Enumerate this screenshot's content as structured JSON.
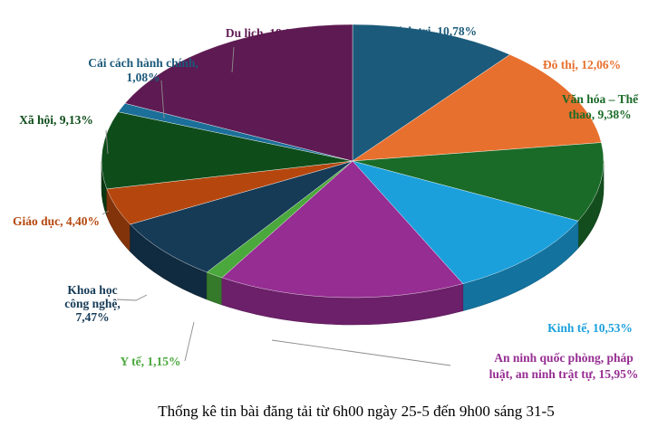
{
  "chart_data": {
    "type": "pie",
    "title": "Thống kê tin bài đăng tải từ 6h00 ngày 25-5 đến 9h00 sáng 31-5",
    "slices": [
      {
        "label": [
          "Chính trị, 10,78%"
        ],
        "value": 10.78,
        "color": "#1b5a7a",
        "label_color": "#1b5a7a"
      },
      {
        "label": [
          "Đô thị, 12,06%"
        ],
        "value": 12.06,
        "color": "#e8702e",
        "label_color": "#e8702e"
      },
      {
        "label": [
          "Văn hóa – Thể",
          "thao, 9,38%"
        ],
        "value": 9.38,
        "color": "#1a6b28",
        "label_color": "#1a6b28"
      },
      {
        "label": [
          "Kinh tế, 10,53%"
        ],
        "value": 10.53,
        "color": "#1ba0dc",
        "label_color": "#1ba0dc"
      },
      {
        "label": [
          "An ninh quốc phòng, pháp",
          "luật, an ninh trật tự, 15,95%"
        ],
        "value": 15.95,
        "color": "#962d92",
        "label_color": "#962d92"
      },
      {
        "label": [
          "Y tế, 1,15%"
        ],
        "value": 1.15,
        "color": "#4aa83c",
        "label_color": "#4aa83c"
      },
      {
        "label": [
          "Khoa học",
          "công nghệ,",
          "7,47%"
        ],
        "value": 7.47,
        "color": "#163b57",
        "label_color": "#163b57"
      },
      {
        "label": [
          "Giáo dục, 4,40%"
        ],
        "value": 4.4,
        "color": "#b5470e",
        "label_color": "#b5470e"
      },
      {
        "label": [
          "Xã hội, 9,13%"
        ],
        "value": 9.13,
        "color": "#0e4d1a",
        "label_color": "#0e4d1a"
      },
      {
        "label": [
          "Cải cách hành chính,",
          "1,08%"
        ],
        "value": 1.08,
        "color": "#1b6f99",
        "label_color": "#1b5a7a"
      },
      {
        "label": [
          "Du lịch, 18,06%"
        ],
        "value": 18.06,
        "color": "#5e1a52",
        "label_color": "#5e1a52"
      }
    ],
    "legend": "none",
    "label_style": "outside with leader lines"
  }
}
